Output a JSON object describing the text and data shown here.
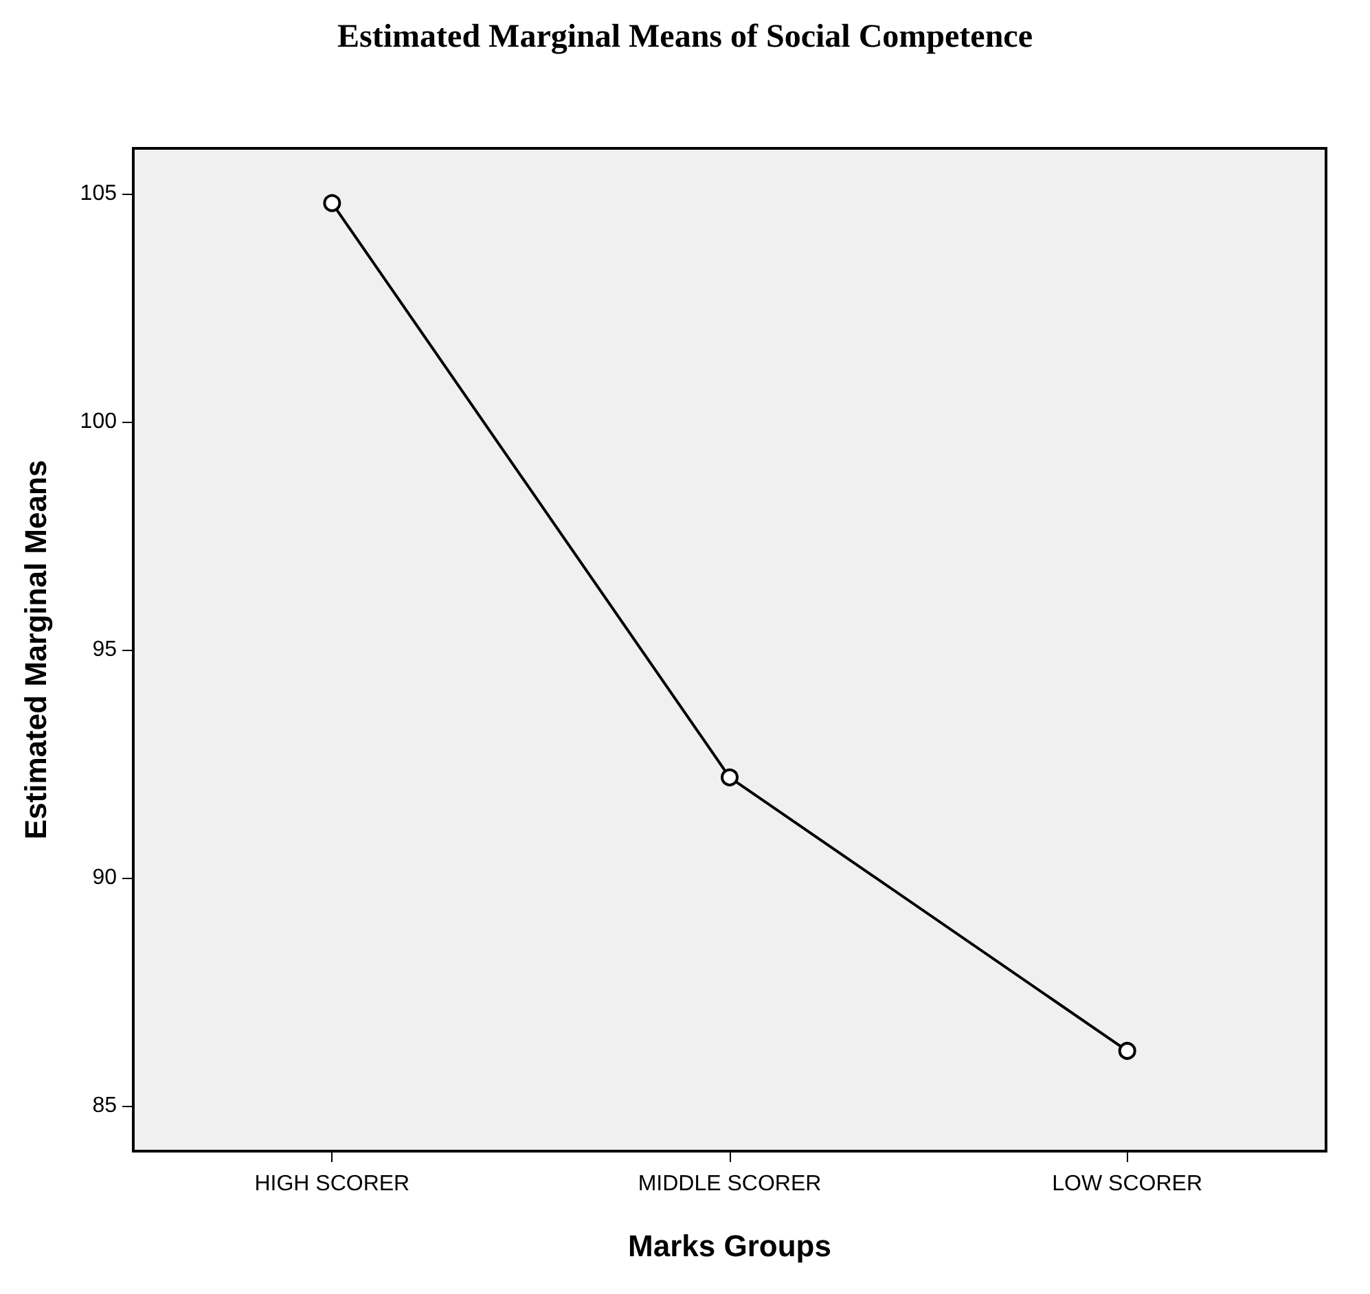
{
  "chart_data": {
    "type": "line",
    "title": "Estimated Marginal Means of Social Competence",
    "xlabel": "Marks Groups",
    "ylabel": "Estimated Marginal Means",
    "categories": [
      "HIGH SCORER",
      "MIDDLE SCORER",
      "LOW SCORER"
    ],
    "series": [
      {
        "color": "#000000",
        "values": [
          104.8,
          92.2,
          86.2
        ]
      }
    ],
    "ylim": [
      84,
      106
    ],
    "yticks": [
      85,
      90,
      95,
      100,
      105
    ],
    "grid": false,
    "marker": "circle",
    "line_style": "solid"
  }
}
